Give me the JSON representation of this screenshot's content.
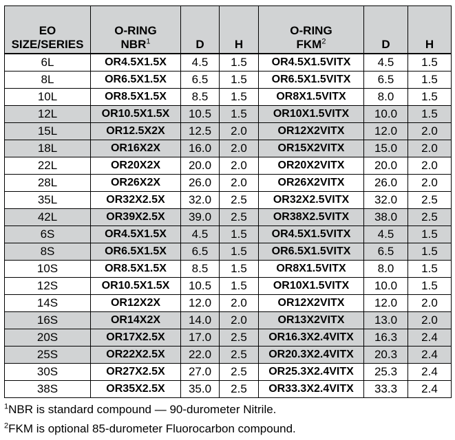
{
  "table": {
    "header": [
      {
        "lines": [
          "EO",
          "SIZE/SERIES"
        ]
      },
      {
        "lines": [
          "O-RING",
          "NBR"
        ],
        "sup": "1"
      },
      {
        "lines": [
          "D"
        ]
      },
      {
        "lines": [
          "H"
        ]
      },
      {
        "lines": [
          "O-RING",
          "FKM"
        ],
        "sup": "2"
      },
      {
        "lines": [
          "D"
        ]
      },
      {
        "lines": [
          "H"
        ]
      }
    ],
    "rows": [
      [
        "6L",
        "OR4.5X1.5X",
        "4.5",
        "1.5",
        "OR4.5X1.5VITX",
        "4.5",
        "1.5"
      ],
      [
        "8L",
        "OR6.5X1.5X",
        "6.5",
        "1.5",
        "OR6.5X1.5VITX",
        "6.5",
        "1.5"
      ],
      [
        "10L",
        "OR8.5X1.5X",
        "8.5",
        "1.5",
        "OR8X1.5VITX",
        "8.0",
        "1.5"
      ],
      [
        "12L",
        "OR10.5X1.5X",
        "10.5",
        "1.5",
        "OR10X1.5VITX",
        "10.0",
        "1.5"
      ],
      [
        "15L",
        "OR12.5X2X",
        "12.5",
        "2.0",
        "OR12X2VITX",
        "12.0",
        "2.0"
      ],
      [
        "18L",
        "OR16X2X",
        "16.0",
        "2.0",
        "OR15X2VITX",
        "15.0",
        "2.0"
      ],
      [
        "22L",
        "OR20X2X",
        "20.0",
        "2.0",
        "OR20X2VITX",
        "20.0",
        "2.0"
      ],
      [
        "28L",
        "OR26X2X",
        "26.0",
        "2.0",
        "OR26X2VITX",
        "26.0",
        "2.0"
      ],
      [
        "35L",
        "OR32X2.5X",
        "32.0",
        "2.5",
        "OR32X2.5VITX",
        "32.0",
        "2.5"
      ],
      [
        "42L",
        "OR39X2.5X",
        "39.0",
        "2.5",
        "OR38X2.5VITX",
        "38.0",
        "2.5"
      ],
      [
        "6S",
        "OR4.5X1.5X",
        "4.5",
        "1.5",
        "OR4.5X1.5VITX",
        "4.5",
        "1.5"
      ],
      [
        "8S",
        "OR6.5X1.5X",
        "6.5",
        "1.5",
        "OR6.5X1.5VITX",
        "6.5",
        "1.5"
      ],
      [
        "10S",
        "OR8.5X1.5X",
        "8.5",
        "1.5",
        "OR8X1.5VITX",
        "8.0",
        "1.5"
      ],
      [
        "12S",
        "OR10.5X1.5X",
        "10.5",
        "1.5",
        "OR10X1.5VITX",
        "10.0",
        "1.5"
      ],
      [
        "14S",
        "OR12X2X",
        "12.0",
        "2.0",
        "OR12X2VITX",
        "12.0",
        "2.0"
      ],
      [
        "16S",
        "OR14X2X",
        "14.0",
        "2.0",
        "OR13X2VITX",
        "13.0",
        "2.0"
      ],
      [
        "20S",
        "OR17X2.5X",
        "17.0",
        "2.5",
        "OR16.3X2.4VITX",
        "16.3",
        "2.4"
      ],
      [
        "25S",
        "OR22X2.5X",
        "22.0",
        "2.5",
        "OR20.3X2.4VITX",
        "20.3",
        "2.4"
      ],
      [
        "30S",
        "OR27X2.5X",
        "27.0",
        "2.5",
        "OR25.3X2.4VITX",
        "25.3",
        "2.4"
      ],
      [
        "38S",
        "OR35X2.5X",
        "35.0",
        "2.5",
        "OR33.3X2.4VITX",
        "33.3",
        "2.4"
      ]
    ]
  },
  "footnotes": [
    {
      "mark": "1",
      "text": "NBR is standard compound — 90-durometer Nitrile."
    },
    {
      "mark": "2",
      "text": "FKM is optional 85-durometer Fluorocarbon compound."
    }
  ]
}
